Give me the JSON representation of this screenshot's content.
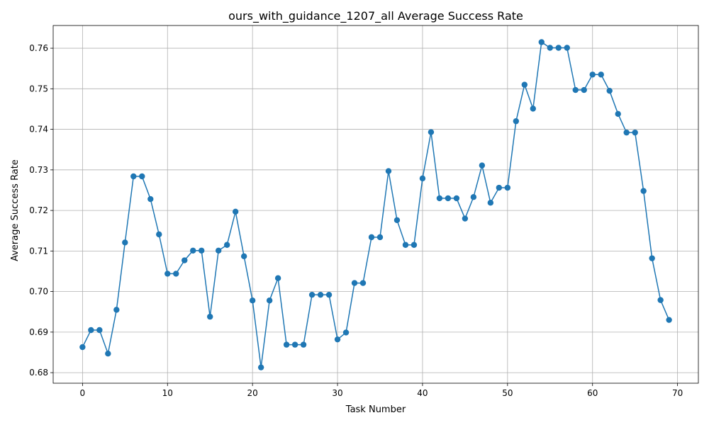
{
  "chart_data": {
    "type": "line",
    "title": "ours_with_guidance_1207_all Average Success Rate",
    "xlabel": "Task Number",
    "ylabel": "Average Success Rate",
    "xlim": [
      -3.45,
      72.45
    ],
    "ylim": [
      0.6774,
      0.7656
    ],
    "xticks": [
      0,
      10,
      20,
      30,
      40,
      50,
      60,
      70
    ],
    "yticks": [
      0.68,
      0.69,
      0.7,
      0.71,
      0.72,
      0.73,
      0.74,
      0.75,
      0.76
    ],
    "xtick_labels": [
      "0",
      "10",
      "20",
      "30",
      "40",
      "50",
      "60",
      "70"
    ],
    "ytick_labels": [
      "0.68",
      "0.69",
      "0.70",
      "0.71",
      "0.72",
      "0.73",
      "0.74",
      "0.75",
      "0.76"
    ],
    "grid": true,
    "color": "#1f77b4",
    "marker": "circle",
    "series": [
      {
        "x": [
          0,
          1,
          2,
          3,
          4,
          5,
          6,
          7,
          8,
          9,
          10,
          11,
          12,
          13,
          14,
          15,
          16,
          17,
          18,
          19,
          20,
          21,
          22,
          23,
          24,
          25,
          26,
          27,
          28,
          29,
          30,
          31,
          32,
          33,
          34,
          35,
          36,
          37,
          38,
          39,
          40,
          41,
          42,
          43,
          44,
          45,
          46,
          47,
          48,
          49,
          50,
          51,
          52,
          53,
          54,
          55,
          56,
          57,
          58,
          59,
          60,
          61,
          62,
          63,
          64,
          65,
          66,
          67,
          68,
          69
        ],
        "values": [
          0.6863,
          0.6905,
          0.6905,
          0.6847,
          0.6955,
          0.7121,
          0.7284,
          0.7284,
          0.7228,
          0.7141,
          0.7044,
          0.7044,
          0.7077,
          0.7101,
          0.7101,
          0.6938,
          0.7101,
          0.7115,
          0.7197,
          0.7087,
          0.6978,
          0.6813,
          0.6978,
          0.7033,
          0.6869,
          0.6869,
          0.6869,
          0.6992,
          0.6992,
          0.6992,
          0.6882,
          0.6899,
          0.7021,
          0.7021,
          0.7134,
          0.7134,
          0.7297,
          0.7176,
          0.7115,
          0.7115,
          0.7279,
          0.7393,
          0.723,
          0.723,
          0.723,
          0.718,
          0.7233,
          0.7311,
          0.7219,
          0.7256,
          0.7256,
          0.742,
          0.751,
          0.7451,
          0.7615,
          0.7601,
          0.7601,
          0.7601,
          0.7497,
          0.7497,
          0.7535,
          0.7535,
          0.7495,
          0.7438,
          0.7392,
          0.7392,
          0.7248,
          0.7082,
          0.6979,
          0.693
        ]
      }
    ]
  }
}
